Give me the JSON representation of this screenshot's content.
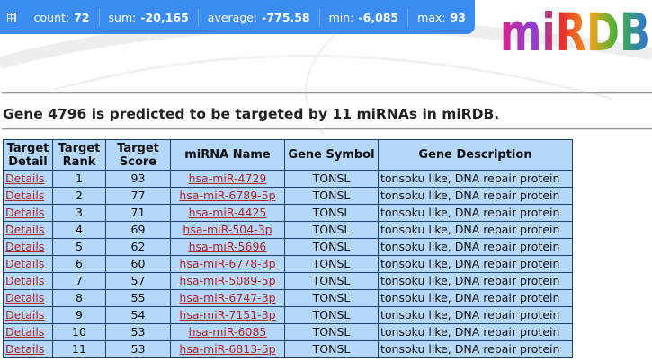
{
  "status_bar": {
    "items": [
      {
        "label": "count:",
        "value": "72"
      },
      {
        "label": "sum:",
        "value": "-20,165"
      },
      {
        "label": "average:",
        "value": "-775.58"
      },
      {
        "label": "min:",
        "value": "-6,085"
      },
      {
        "label": "max:",
        "value": "93"
      }
    ]
  },
  "logo": "miRDB",
  "heading": "Gene 4796 is predicted to be targeted by 11 miRNAs in miRDB.",
  "table": {
    "columns": [
      "Target Detail",
      "Target Rank",
      "Target Score",
      "miRNA Name",
      "Gene Symbol",
      "Gene Description"
    ],
    "rows": [
      [
        "Details",
        1,
        93,
        "hsa-miR-4729",
        "TONSL",
        "tonsoku like, DNA repair protein"
      ],
      [
        "Details",
        2,
        77,
        "hsa-miR-6789-5p",
        "TONSL",
        "tonsoku like, DNA repair protein"
      ],
      [
        "Details",
        3,
        71,
        "hsa-miR-4425",
        "TONSL",
        "tonsoku like, DNA repair protein"
      ],
      [
        "Details",
        4,
        69,
        "hsa-miR-504-3p",
        "TONSL",
        "tonsoku like, DNA repair protein"
      ],
      [
        "Details",
        5,
        62,
        "hsa-miR-5696",
        "TONSL",
        "tonsoku like, DNA repair protein"
      ],
      [
        "Details",
        6,
        60,
        "hsa-miR-6778-3p",
        "TONSL",
        "tonsoku like, DNA repair protein"
      ],
      [
        "Details",
        7,
        57,
        "hsa-miR-5089-5p",
        "TONSL",
        "tonsoku like, DNA repair protein"
      ],
      [
        "Details",
        8,
        55,
        "hsa-miR-6747-3p",
        "TONSL",
        "tonsoku like, DNA repair protein"
      ],
      [
        "Details",
        9,
        54,
        "hsa-miR-7151-3p",
        "TONSL",
        "tonsoku like, DNA repair protein"
      ],
      [
        "Details",
        10,
        53,
        "hsa-miR-6085",
        "TONSL",
        "tonsoku like, DNA repair protein"
      ],
      [
        "Details",
        11,
        53,
        "hsa-miR-6813-5p",
        "TONSL",
        "tonsoku like, DNA repair protein"
      ]
    ]
  }
}
